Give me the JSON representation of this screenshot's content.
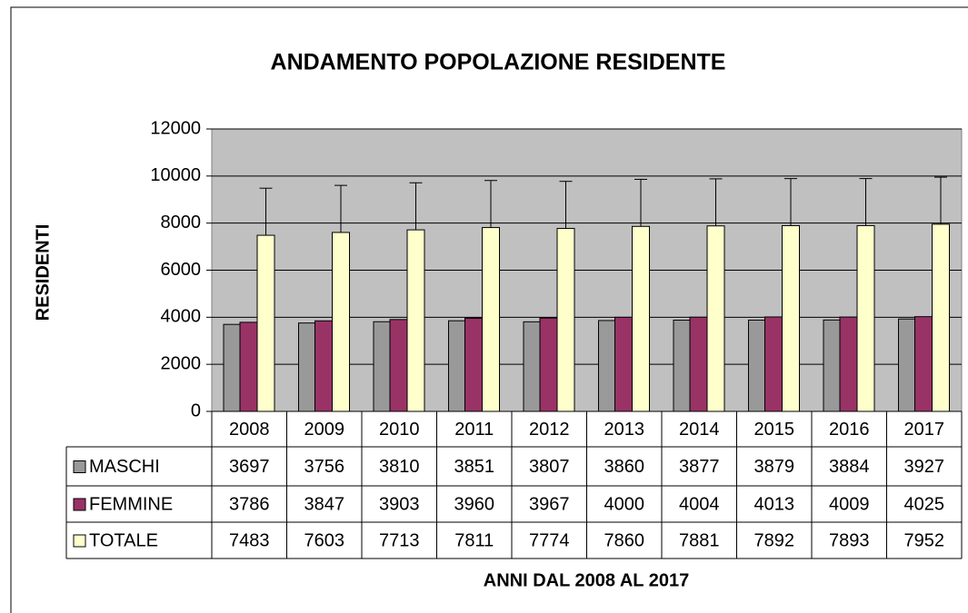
{
  "chart_data": {
    "type": "bar",
    "title": "ANDAMENTO POPOLAZIONE RESIDENTE",
    "y_label": "RESIDENTI",
    "x_label": "ANNI DAL 2008 AL 2017",
    "categories": [
      "2008",
      "2009",
      "2010",
      "2011",
      "2012",
      "2013",
      "2014",
      "2015",
      "2016",
      "2017"
    ],
    "series": [
      {
        "name": "MASCHI",
        "color": "#999999",
        "values": [
          3697,
          3756,
          3810,
          3851,
          3807,
          3860,
          3877,
          3879,
          3884,
          3927
        ]
      },
      {
        "name": "FEMMINE",
        "color": "#993366",
        "values": [
          3786,
          3847,
          3903,
          3960,
          3967,
          4000,
          4004,
          4013,
          4009,
          4025
        ]
      },
      {
        "name": "TOTALE",
        "color": "#ffffcc",
        "values": [
          7483,
          7603,
          7713,
          7811,
          7774,
          7860,
          7881,
          7892,
          7893,
          7952
        ],
        "errors": [
          2000,
          2000,
          2000,
          2000,
          2000,
          2000,
          2000,
          2000,
          2000,
          2000
        ]
      }
    ],
    "ylim": [
      0,
      12000
    ],
    "yticks": [
      0,
      2000,
      4000,
      6000,
      8000,
      10000,
      12000
    ],
    "grid": true,
    "plot_background": "#c0c0c0"
  }
}
